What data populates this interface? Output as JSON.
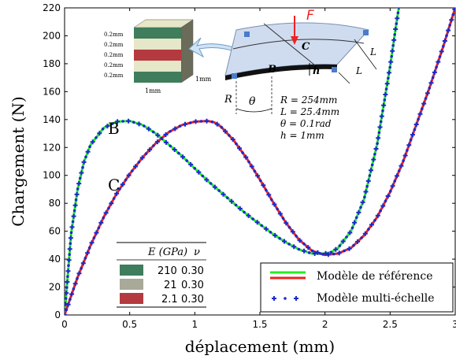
{
  "chart_data": {
    "type": "line",
    "xlabel": "déplacement (mm)",
    "ylabel": "Chargement (N)",
    "xlim": [
      0,
      3
    ],
    "ylim": [
      0,
      220
    ],
    "xticks": [
      "0",
      "0.5",
      "1",
      "1.5",
      "2",
      "2.5",
      "3"
    ],
    "yticks": [
      "0",
      "20",
      "40",
      "60",
      "80",
      "100",
      "120",
      "140",
      "160",
      "180",
      "200",
      "220"
    ],
    "grid": false,
    "legend_position": "bottom-right",
    "legend": {
      "ref_label": "Modèle de référence",
      "multi_label": "Modèle multi-échelle"
    },
    "curve_labels": {
      "B": "B",
      "C": "C"
    },
    "series": [
      {
        "name": "Modèle de référence",
        "point": "B",
        "color": "#22ee22",
        "x": [
          0,
          0.05,
          0.1,
          0.15,
          0.2,
          0.3,
          0.4,
          0.5,
          0.6,
          0.7,
          0.8,
          0.9,
          1.0,
          1.1,
          1.2,
          1.3,
          1.4,
          1.5,
          1.6,
          1.7,
          1.8,
          1.9,
          2.0,
          2.05,
          2.1,
          2.2,
          2.3,
          2.4,
          2.5,
          2.55,
          2.57
        ],
        "y": [
          0,
          58,
          90,
          110,
          122,
          134,
          138.5,
          139,
          136,
          130,
          122,
          114,
          105,
          96,
          88,
          80,
          72,
          65,
          58,
          52,
          47,
          44,
          44,
          45,
          48,
          60,
          83,
          122,
          178,
          210,
          222
        ]
      },
      {
        "name": "Modèle de référence",
        "point": "C",
        "color": "#ee2222",
        "x": [
          0,
          0.1,
          0.2,
          0.3,
          0.4,
          0.5,
          0.6,
          0.7,
          0.8,
          0.9,
          1.0,
          1.1,
          1.15,
          1.2,
          1.3,
          1.4,
          1.5,
          1.6,
          1.7,
          1.8,
          1.9,
          2.0,
          2.1,
          2.2,
          2.3,
          2.4,
          2.5,
          2.6,
          2.7,
          2.8,
          2.9,
          3.0
        ],
        "y": [
          0,
          27,
          50,
          70,
          87,
          101,
          113,
          123,
          131,
          136,
          138.5,
          139,
          138,
          135,
          125,
          112,
          97,
          81,
          66,
          54,
          46,
          43,
          44,
          48,
          57,
          70,
          88,
          110,
          136,
          162,
          190,
          220
        ]
      },
      {
        "name": "Modèle multi-échelle",
        "point": "B",
        "color": "#1a2bcc",
        "x": [
          0,
          0.05,
          0.1,
          0.15,
          0.2,
          0.3,
          0.4,
          0.5,
          0.6,
          0.7,
          0.8,
          0.9,
          1.0,
          1.1,
          1.2,
          1.3,
          1.4,
          1.5,
          1.6,
          1.7,
          1.8,
          1.9,
          2.0,
          2.05,
          2.1,
          2.2,
          2.3,
          2.4,
          2.5,
          2.55,
          2.57
        ],
        "y": [
          0,
          58,
          90,
          110,
          122,
          134,
          138.5,
          139,
          136,
          130,
          122,
          114,
          105,
          96,
          88,
          80,
          72,
          65,
          58,
          52,
          47,
          44,
          44,
          45,
          48,
          60,
          83,
          122,
          178,
          210,
          222
        ]
      },
      {
        "name": "Modèle multi-échelle",
        "point": "C",
        "color": "#1a2bcc",
        "x": [
          0,
          0.1,
          0.2,
          0.3,
          0.4,
          0.5,
          0.6,
          0.7,
          0.8,
          0.9,
          1.0,
          1.1,
          1.15,
          1.2,
          1.3,
          1.4,
          1.5,
          1.6,
          1.7,
          1.8,
          1.9,
          2.0,
          2.1,
          2.2,
          2.3,
          2.4,
          2.5,
          2.6,
          2.7,
          2.8,
          2.9,
          3.0
        ],
        "y": [
          0,
          27,
          50,
          70,
          87,
          101,
          113,
          123,
          131,
          136,
          138.5,
          139,
          138,
          135,
          125,
          112,
          97,
          81,
          66,
          54,
          46,
          43,
          44,
          48,
          57,
          70,
          88,
          110,
          136,
          162,
          190,
          220
        ]
      }
    ],
    "materials_table": {
      "col1": "E (GPa)",
      "col2": "ν",
      "rows": [
        {
          "color": "#3f7d5c",
          "E": "210",
          "nu": "0.30"
        },
        {
          "color": "#a9a999",
          "E": "21",
          "nu": "0.30"
        },
        {
          "color": "#b53a3f",
          "E": "2.1",
          "nu": "0.30"
        }
      ]
    },
    "inset": {
      "force_label": "F",
      "point_B": "B",
      "point_C": "C",
      "h_label": "h",
      "L_label_1": "L",
      "L_label_2": "L",
      "R_label": "R",
      "theta_label": "θ",
      "layer_labels": [
        "0.2mm",
        "0.2mm",
        "0.2mm",
        "0.2mm",
        "0.2mm"
      ],
      "dim_depth": "1mm",
      "dim_width": "1mm",
      "params": [
        "R = 254mm",
        "L = 25.4mm",
        "θ = 0.1rad",
        "h = 1mm"
      ]
    }
  }
}
